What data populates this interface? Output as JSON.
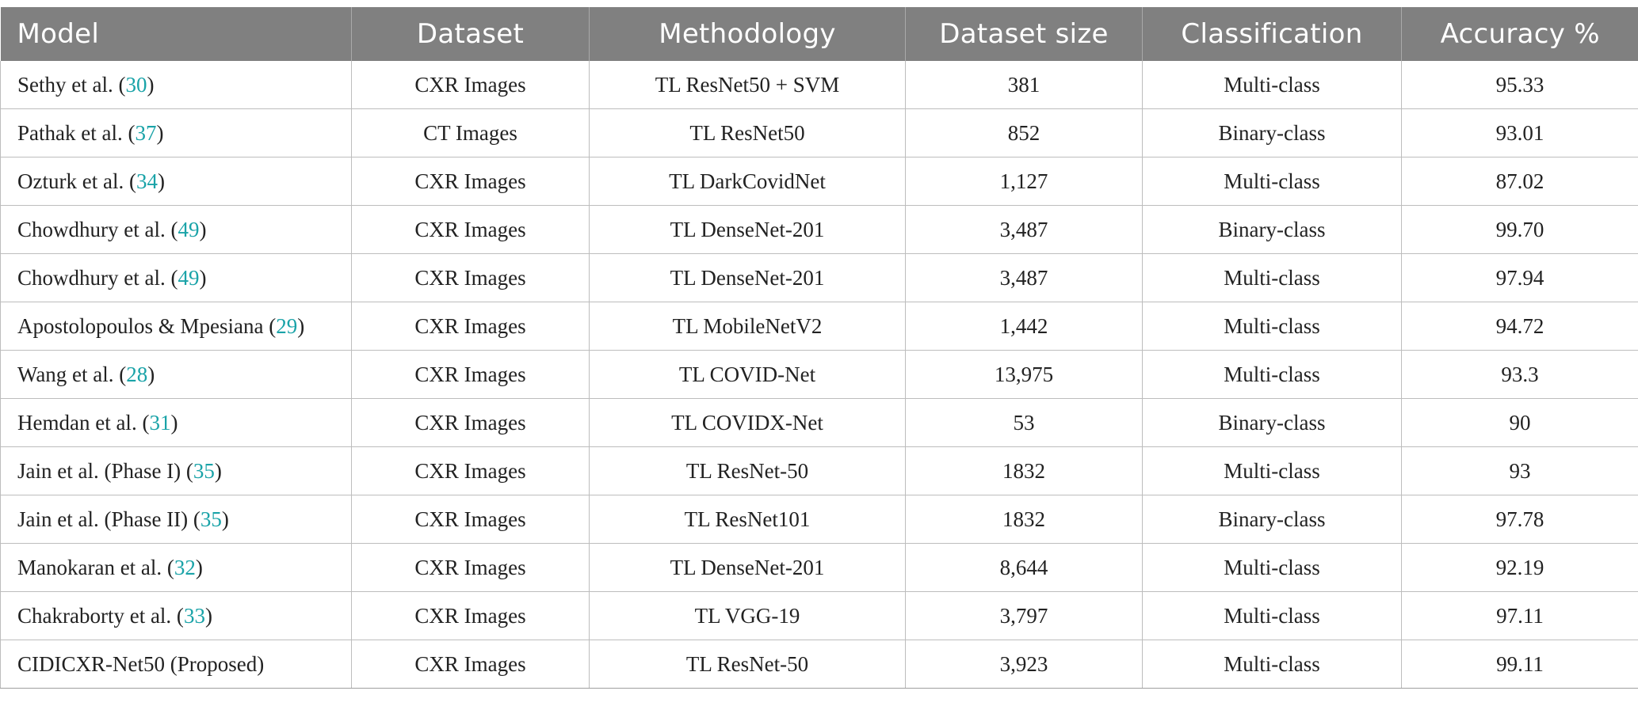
{
  "table": {
    "headers": [
      "Model",
      "Dataset",
      "Methodology",
      "Dataset size",
      "Classification",
      "Accuracy %"
    ],
    "rows": [
      {
        "model": "Sethy et al. (",
        "ref": "30",
        "close": ")",
        "dataset": "CXR Images",
        "methodology": "TL ResNet50 + SVM",
        "size": "381",
        "classification": "Multi-class",
        "accuracy": "95.33"
      },
      {
        "model": "Pathak et al. (",
        "ref": "37",
        "close": ")",
        "dataset": "CT Images",
        "methodology": "TL ResNet50",
        "size": "852",
        "classification": "Binary-class",
        "accuracy": "93.01"
      },
      {
        "model": "Ozturk et al. (",
        "ref": "34",
        "close": ")",
        "dataset": "CXR Images",
        "methodology": "TL DarkCovidNet",
        "size": "1,127",
        "classification": "Multi-class",
        "accuracy": "87.02"
      },
      {
        "model": "Chowdhury et al. (",
        "ref": "49",
        "close": ")",
        "dataset": "CXR Images",
        "methodology": "TL DenseNet-201",
        "size": "3,487",
        "classification": "Binary-class",
        "accuracy": "99.70"
      },
      {
        "model": "Chowdhury et al. (",
        "ref": "49",
        "close": ")",
        "dataset": "CXR Images",
        "methodology": "TL DenseNet-201",
        "size": "3,487",
        "classification": "Multi-class",
        "accuracy": "97.94"
      },
      {
        "model": "Apostolopoulos & Mpesiana (",
        "ref": "29",
        "close": ")",
        "dataset": "CXR Images",
        "methodology": "TL MobileNetV2",
        "size": "1,442",
        "classification": "Multi-class",
        "accuracy": "94.72"
      },
      {
        "model": "Wang et al. (",
        "ref": "28",
        "close": ")",
        "dataset": "CXR Images",
        "methodology": "TL COVID-Net",
        "size": "13,975",
        "classification": "Multi-class",
        "accuracy": "93.3"
      },
      {
        "model": "Hemdan et al. (",
        "ref": "31",
        "close": ")",
        "dataset": "CXR Images",
        "methodology": "TL COVIDX-Net",
        "size": "53",
        "classification": "Binary-class",
        "accuracy": "90"
      },
      {
        "model": "Jain et al. (Phase I) (",
        "ref": "35",
        "close": ")",
        "dataset": "CXR Images",
        "methodology": "TL ResNet-50",
        "size": "1832",
        "classification": "Multi-class",
        "accuracy": "93"
      },
      {
        "model": "Jain et al. (Phase II) (",
        "ref": "35",
        "close": ")",
        "dataset": "CXR Images",
        "methodology": "TL ResNet101",
        "size": "1832",
        "classification": "Binary-class",
        "accuracy": "97.78"
      },
      {
        "model": "Manokaran et al. (",
        "ref": "32",
        "close": ")",
        "dataset": "CXR Images",
        "methodology": "TL DenseNet-201",
        "size": "8,644",
        "classification": "Multi-class",
        "accuracy": "92.19"
      },
      {
        "model": "Chakraborty et al. (",
        "ref": "33",
        "close": ")",
        "dataset": "CXR Images",
        "methodology": "TL VGG-19",
        "size": "3,797",
        "classification": "Multi-class",
        "accuracy": "97.11"
      },
      {
        "model": "CIDICXR-Net50 (Proposed)",
        "ref": "",
        "close": "",
        "dataset": "CXR Images",
        "methodology": "TL ResNet-50",
        "size": "3,923",
        "classification": "Multi-class",
        "accuracy": "99.11"
      }
    ]
  },
  "colors": {
    "header_bg": "#808080",
    "header_text": "#ffffff",
    "reference_link": "#1aa3a8",
    "grid": "#bdbdbd"
  }
}
